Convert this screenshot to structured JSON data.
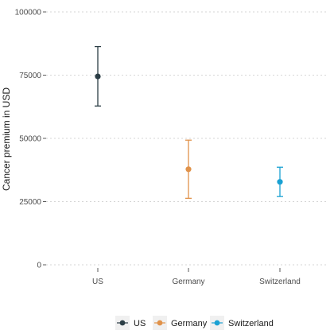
{
  "chart_data": {
    "type": "scatter",
    "title": "",
    "xlabel": "",
    "ylabel": "Cancer premium in USD",
    "ylim": [
      0,
      100000
    ],
    "yticks": [
      0,
      25000,
      50000,
      75000,
      100000
    ],
    "ytick_labels": [
      "0",
      "25000",
      "50000",
      "75000",
      "100000"
    ],
    "categories": [
      "US",
      "Germany",
      "Switzerland"
    ],
    "series": [
      {
        "name": "US",
        "color": "#2b3d45",
        "value": 74500,
        "lower": 62800,
        "upper": 86300
      },
      {
        "name": "Germany",
        "color": "#e0924a",
        "value": 37800,
        "lower": 26300,
        "upper": 49300
      },
      {
        "name": "Switzerland",
        "color": "#1aa1d3",
        "value": 32800,
        "lower": 27000,
        "upper": 38600
      }
    ],
    "grid": true,
    "legend": "bottom"
  }
}
